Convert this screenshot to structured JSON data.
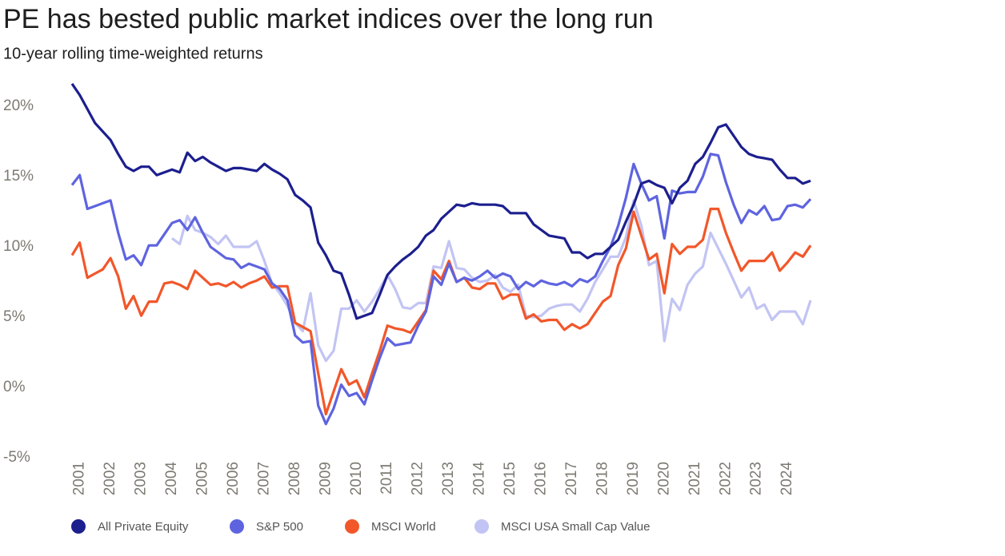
{
  "chart_data": {
    "type": "line",
    "title": "PE has bested public market indices over the long run",
    "subtitle": "10-year rolling time-weighted returns",
    "x": [
      2000.75,
      2001,
      2001.25,
      2001.5,
      2001.75,
      2002,
      2002.25,
      2002.5,
      2002.75,
      2003,
      2003.25,
      2003.5,
      2003.75,
      2004,
      2004.25,
      2004.5,
      2004.75,
      2005,
      2005.25,
      2005.5,
      2005.75,
      2006,
      2006.25,
      2006.5,
      2006.75,
      2007,
      2007.25,
      2007.5,
      2007.75,
      2008,
      2008.25,
      2008.5,
      2008.75,
      2009,
      2009.25,
      2009.5,
      2009.75,
      2010,
      2010.25,
      2010.5,
      2010.75,
      2011,
      2011.25,
      2011.5,
      2011.75,
      2012,
      2012.25,
      2012.5,
      2012.75,
      2013,
      2013.25,
      2013.5,
      2013.75,
      2014,
      2014.25,
      2014.5,
      2014.75,
      2015,
      2015.25,
      2015.5,
      2015.75,
      2016,
      2016.25,
      2016.5,
      2016.75,
      2017,
      2017.25,
      2017.5,
      2017.75,
      2018,
      2018.25,
      2018.5,
      2018.75,
      2019,
      2019.25,
      2019.5,
      2019.75,
      2020,
      2020.25,
      2020.5,
      2020.75,
      2021,
      2021.25,
      2021.5,
      2021.75,
      2022,
      2022.25,
      2022.5,
      2022.75,
      2023,
      2023.25,
      2023.5,
      2023.75,
      2024,
      2024.25,
      2024.5,
      2024.75
    ],
    "series": [
      {
        "name": "All Private Equity",
        "color": "#1c1f8e",
        "values": [
          21.6,
          20.8,
          19.8,
          18.8,
          18.2,
          17.6,
          16.6,
          15.7,
          15.4,
          15.7,
          15.7,
          15.1,
          15.3,
          15.5,
          15.3,
          16.7,
          16.1,
          16.4,
          16.0,
          15.7,
          15.4,
          15.6,
          15.6,
          15.5,
          15.4,
          15.9,
          15.5,
          15.2,
          14.8,
          13.7,
          13.3,
          12.8,
          10.3,
          9.4,
          8.3,
          8.1,
          6.6,
          4.9,
          5.1,
          5.3,
          6.6,
          8.0,
          8.6,
          9.1,
          9.5,
          10.0,
          10.8,
          11.2,
          12.0,
          12.5,
          13.0,
          12.9,
          13.1,
          13.0,
          13.0,
          13.0,
          12.9,
          12.4,
          12.4,
          12.4,
          11.6,
          11.2,
          10.8,
          10.7,
          10.6,
          9.6,
          9.6,
          9.2,
          9.5,
          9.5,
          10.0,
          10.5,
          11.8,
          13.0,
          14.5,
          14.7,
          14.4,
          14.2,
          13.1,
          14.2,
          14.7,
          15.9,
          16.4,
          17.4,
          18.5,
          18.7,
          17.9,
          17.1,
          16.6,
          16.4,
          16.3,
          16.2,
          15.5,
          14.9,
          14.9,
          14.5,
          14.7
        ]
      },
      {
        "name": "S&P 500",
        "color": "#5e64df",
        "values": [
          14.4,
          15.1,
          12.7,
          12.9,
          13.1,
          13.3,
          11.0,
          9.1,
          9.4,
          8.7,
          10.1,
          10.1,
          10.9,
          11.7,
          11.9,
          11.2,
          12.1,
          11.0,
          10.0,
          9.6,
          9.2,
          9.1,
          8.5,
          8.8,
          8.6,
          8.4,
          7.4,
          7.0,
          6.2,
          3.7,
          3.2,
          3.3,
          -1.3,
          -2.6,
          -1.5,
          0.2,
          -0.6,
          -0.4,
          -1.2,
          0.5,
          2.1,
          3.5,
          3.0,
          3.1,
          3.2,
          4.4,
          5.4,
          7.9,
          7.3,
          8.8,
          7.5,
          7.8,
          7.6,
          7.9,
          8.3,
          7.8,
          8.1,
          7.9,
          7.0,
          7.5,
          7.2,
          7.6,
          7.4,
          7.3,
          7.5,
          7.2,
          7.7,
          7.5,
          7.9,
          9.0,
          10.0,
          11.5,
          13.5,
          15.9,
          14.5,
          13.3,
          13.6,
          10.6,
          14.0,
          13.8,
          13.9,
          13.9,
          15.0,
          16.6,
          16.5,
          14.6,
          13.0,
          11.7,
          12.6,
          12.3,
          12.9,
          11.9,
          12.0,
          12.9,
          13.0,
          12.8,
          13.4
        ]
      },
      {
        "name": "MSCI World",
        "color": "#f2572a",
        "values": [
          9.4,
          10.3,
          7.8,
          8.1,
          8.4,
          9.2,
          7.9,
          5.6,
          6.5,
          5.1,
          6.1,
          6.1,
          7.4,
          7.5,
          7.3,
          7.0,
          8.3,
          7.8,
          7.3,
          7.4,
          7.2,
          7.5,
          7.1,
          7.4,
          7.6,
          7.9,
          7.1,
          7.2,
          7.2,
          4.6,
          4.3,
          4.0,
          1.0,
          -1.9,
          -0.3,
          1.3,
          0.2,
          0.5,
          -0.7,
          1.0,
          2.6,
          4.4,
          4.2,
          4.1,
          3.9,
          4.7,
          5.5,
          8.3,
          7.7,
          9.0,
          7.5,
          7.8,
          7.1,
          7.0,
          7.4,
          7.4,
          6.3,
          6.6,
          6.6,
          4.9,
          5.2,
          4.7,
          4.8,
          4.8,
          4.1,
          4.5,
          4.2,
          4.5,
          5.3,
          6.1,
          6.5,
          8.7,
          9.9,
          12.5,
          10.8,
          9.1,
          9.5,
          6.7,
          10.2,
          9.5,
          10.0,
          10.0,
          10.5,
          12.7,
          12.7,
          11.0,
          9.6,
          8.3,
          9.0,
          9.0,
          9.0,
          9.6,
          8.3,
          8.9,
          9.6,
          9.3,
          10.1
        ]
      },
      {
        "name": "MSCI USA Small Cap Value",
        "color": "#c2c4f3",
        "values": [
          null,
          null,
          null,
          null,
          null,
          null,
          null,
          null,
          null,
          null,
          null,
          null,
          null,
          10.6,
          10.2,
          12.2,
          11.2,
          11.0,
          10.7,
          10.2,
          10.8,
          10.0,
          10.0,
          10.0,
          10.4,
          9.0,
          7.4,
          6.7,
          5.8,
          4.6,
          4.0,
          6.7,
          3.0,
          1.9,
          2.6,
          5.6,
          5.6,
          6.2,
          5.4,
          6.1,
          7.0,
          8.0,
          7.0,
          5.7,
          5.6,
          6.0,
          6.0,
          8.6,
          8.5,
          10.4,
          8.5,
          8.4,
          7.8,
          7.5,
          7.6,
          8.0,
          7.1,
          6.8,
          7.3,
          5.1,
          5.0,
          5.1,
          5.6,
          5.8,
          5.9,
          5.9,
          5.4,
          6.3,
          7.5,
          8.4,
          9.3,
          9.3,
          10.7,
          13.3,
          11.5,
          8.7,
          9.0,
          3.3,
          6.3,
          5.5,
          7.3,
          8.1,
          8.6,
          11.0,
          9.9,
          8.8,
          7.6,
          6.4,
          7.1,
          5.6,
          5.9,
          4.8,
          5.4,
          5.4,
          5.4,
          4.5,
          6.2
        ]
      }
    ],
    "xlim": [
      2000.75,
      2024.75
    ],
    "xticks": [
      2001,
      2002,
      2003,
      2004,
      2005,
      2006,
      2007,
      2008,
      2009,
      2010,
      2011,
      2012,
      2013,
      2014,
      2015,
      2016,
      2017,
      2018,
      2019,
      2020,
      2021,
      2022,
      2023,
      2024
    ],
    "ylim": [
      -5,
      22
    ],
    "yticks": [
      {
        "value": -5,
        "label": "-5%"
      },
      {
        "value": 0,
        "label": "0%"
      },
      {
        "value": 5,
        "label": "5%"
      },
      {
        "value": 10,
        "label": "10%"
      },
      {
        "value": 15,
        "label": "15%"
      },
      {
        "value": 20,
        "label": "20%"
      }
    ],
    "grid": false,
    "legend": "bottom"
  }
}
